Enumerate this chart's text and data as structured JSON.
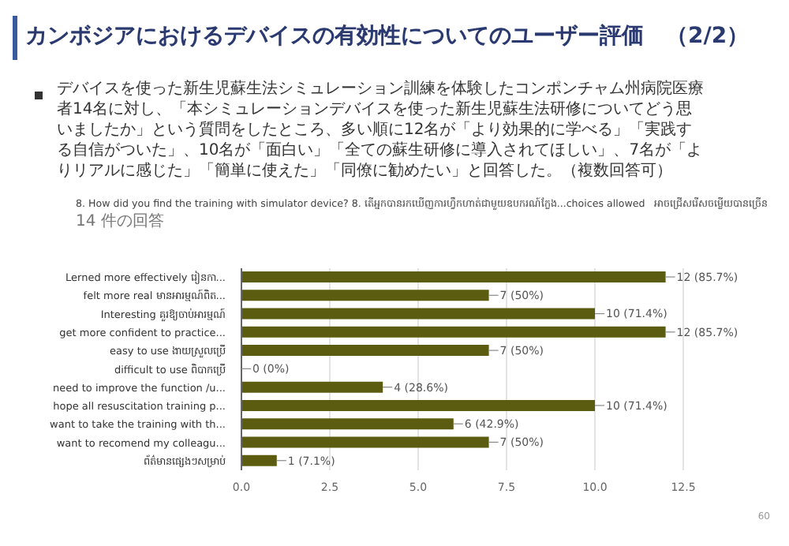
{
  "chart_data": {
    "type": "bar",
    "orientation": "horizontal",
    "title": "カンボジアにおけるデバイスの有効性についてのユーザー評価　（2/2）",
    "annotations": [
      "デバイスを使った新生児蘇生法シミュレーション訓練を体験したコンポンチャム州病院医療者14名に対し、「本シミュレーションデバイスを使った新生児蘇生法研修についてどう思いましたか」という質問をしたところ、多い順に12名が「より効果的に学べる」「実践する自信がついた」、10名が「面白い」「全ての蘇生研修に導入されてほしい」、7名が「よりリアルに感じた」「簡単に使えた」「同僚に勧めたい」と回答した。（複数回答可）",
      "60"
    ],
    "subtitle": "8. How did you find the training with simulator device? 8. តើអ្នកបានរកឃើញការហ្វឹកហាត់ជាមួយឧបករណ៍ក្លែង...choices allowed　អាចជ្រើសរើសចម្លើយបានច្រើន\n14 件の回答",
    "categories": [
      "Lerned more effectively រៀនកា...",
      "felt more real មានអារម្មណ៍ពិត...",
      "Interesting គួរឱ្យចាប់អារម្មណ៍",
      "get more confident to practice...",
      "easy to use ងាយស្រួលប្រើ",
      "difficult to use ពិបាកប្រើ",
      "need to improve the function /u...",
      "hope all resuscitation training p...",
      "want to take the training with th...",
      "want to recomend my colleagu...",
      "ព័ត៌មានផ្សេងៗសម្រាប់"
    ],
    "values": [
      12,
      7,
      10,
      12,
      7,
      0,
      4,
      10,
      6,
      7,
      1
    ],
    "value_labels": [
      "12 (85.7%)",
      "7 (50%)",
      "10 (71.4%)",
      "12 (85.7%)",
      "7 (50%)",
      "0 (0%)",
      "4 (28.6%)",
      "10 (71.4%)",
      "6 (42.9%)",
      "7 (50%)",
      "1 (7.1%)"
    ],
    "color": "#5c5c10",
    "xlim": [
      0,
      12.5
    ],
    "xticks": [
      {
        "value": 0,
        "label": "0.0"
      },
      2.5,
      {
        "value": 5,
        "label": "5.0"
      },
      7.5,
      {
        "value": 10,
        "label": "10.0"
      },
      12.5
    ],
    "grid": "x",
    "legend": false
  }
}
